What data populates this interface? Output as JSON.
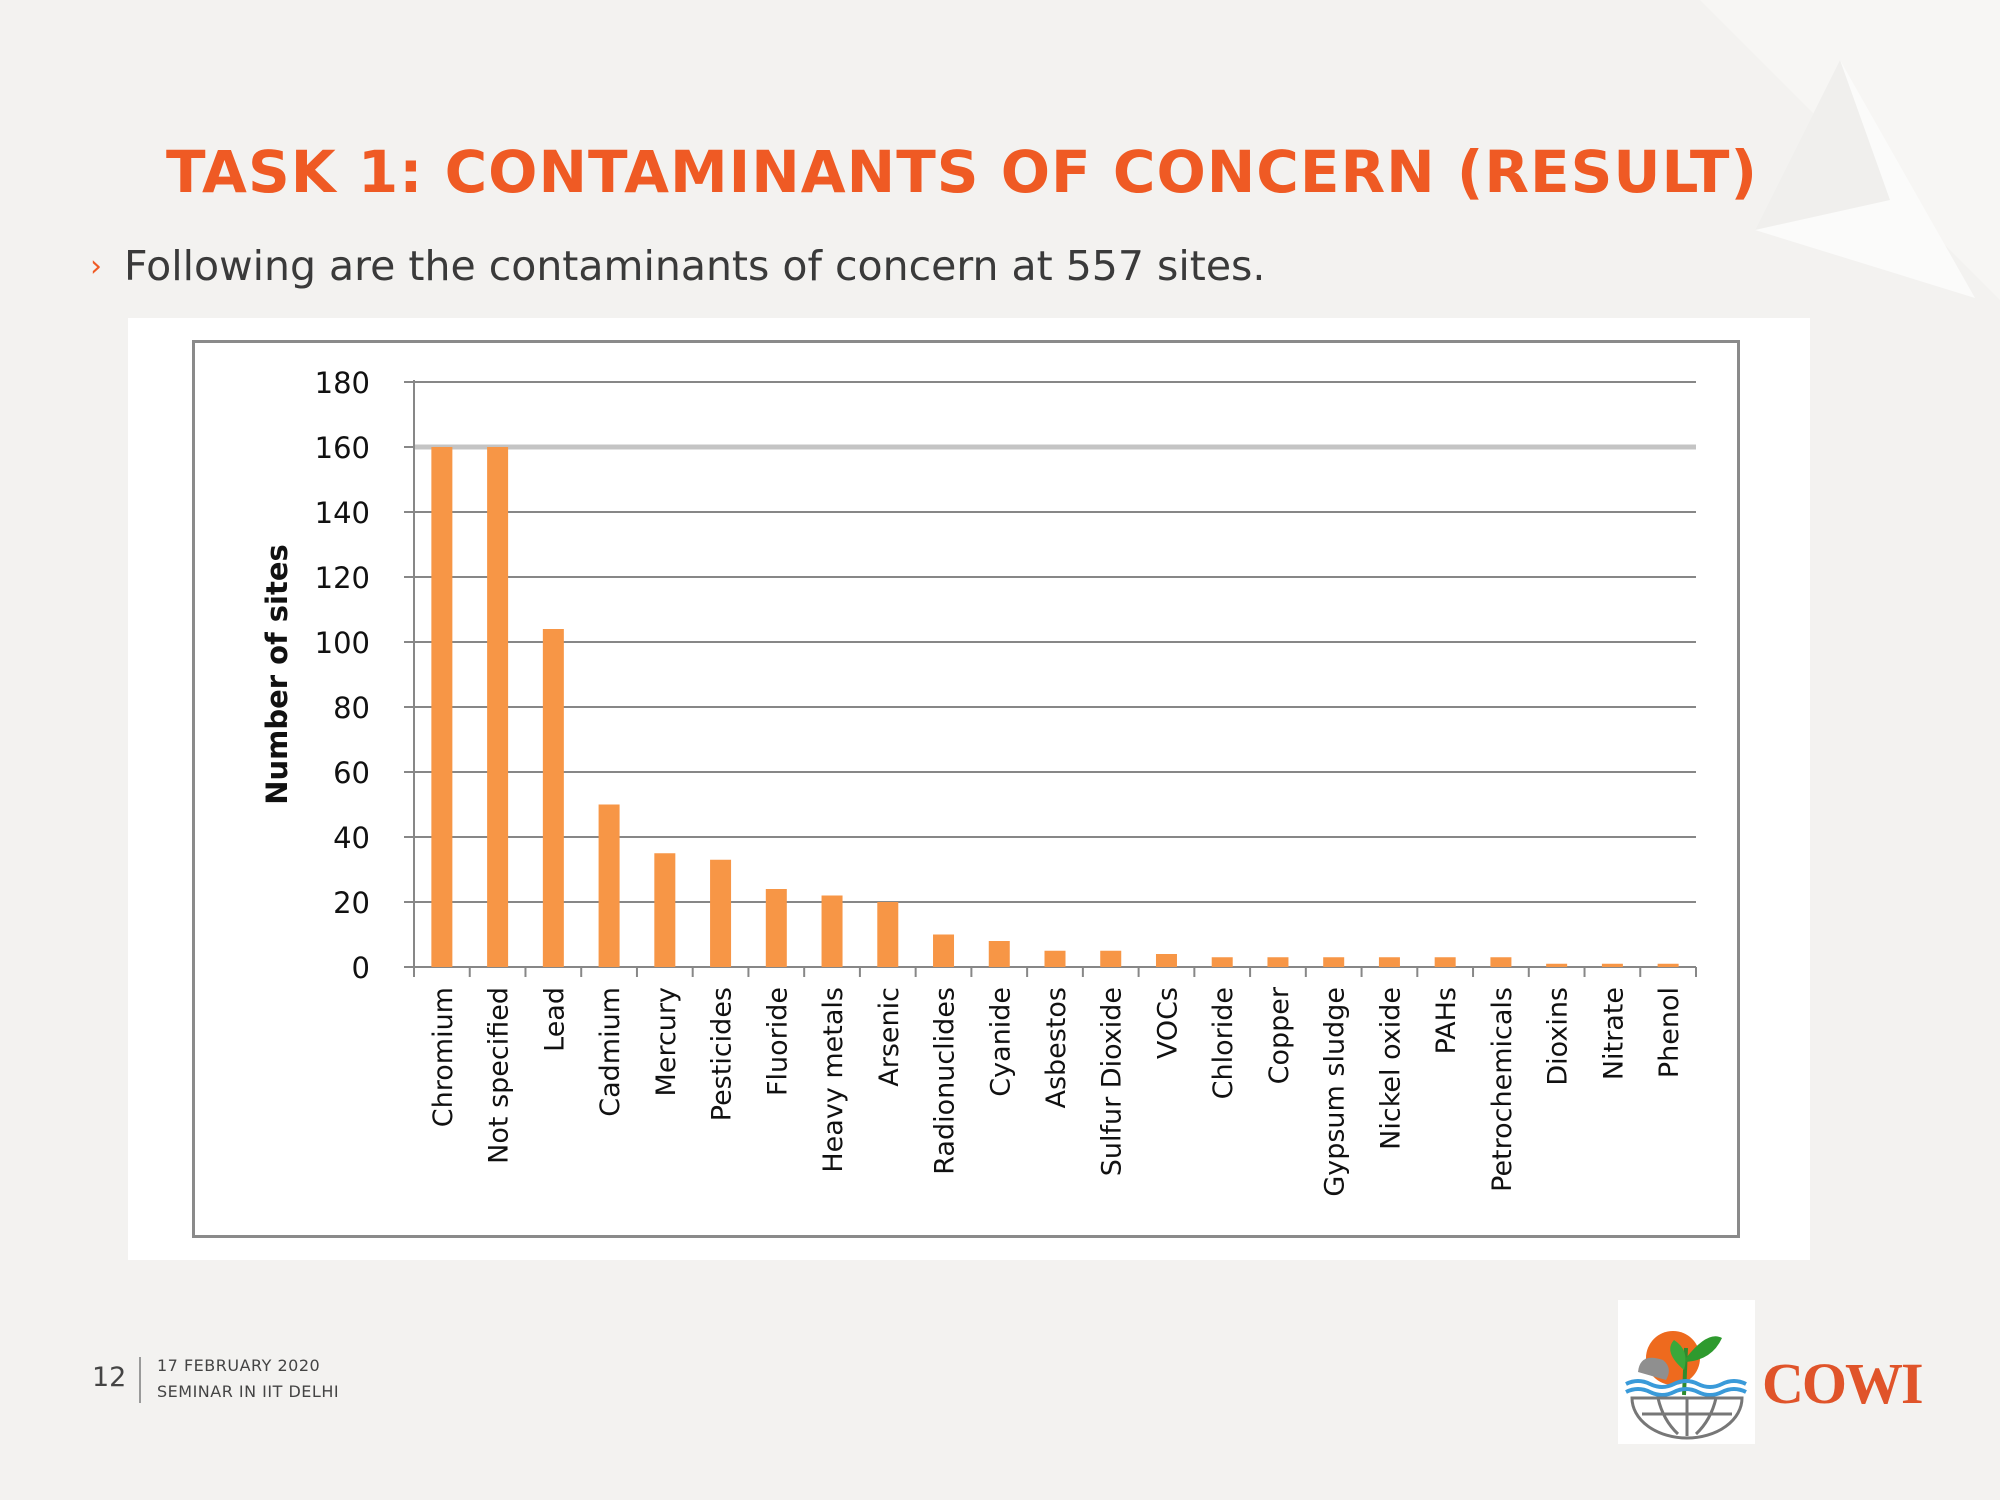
{
  "slide": {
    "title": "TASK 1: CONTAMINANTS OF CONCERN (RESULT)",
    "bullet_marker": "›",
    "bullet": "Following are the contaminants of concern at 557 sites.",
    "page_number": "12",
    "date": "17 FEBRUARY 2020",
    "event": "SEMINAR IN IIT DELHI",
    "logo_text": "COWI",
    "accent_color": "#ef5a24",
    "bar_color": "#f79646"
  },
  "chart_data": {
    "type": "bar",
    "categories": [
      "Chromium",
      "Not specified",
      "Lead",
      "Cadmium",
      "Mercury",
      "Pesticides",
      "Fluoride",
      "Heavy metals",
      "Arsenic",
      "Radionuclides",
      "Cyanide",
      "Asbestos",
      "Sulfur Dioxide",
      "VOCs",
      "Chloride",
      "Copper",
      "Gypsum sludge",
      "Nickel oxide",
      "PAHs",
      "Petrochemicals",
      "Dioxins",
      "Nitrate",
      "Phenol"
    ],
    "values": [
      160,
      160,
      104,
      50,
      35,
      33,
      24,
      22,
      20,
      10,
      8,
      5,
      5,
      4,
      3,
      3,
      3,
      3,
      3,
      3,
      1,
      1,
      1
    ],
    "title": "",
    "xlabel": "",
    "ylabel": "Number of sites",
    "ylim": [
      0,
      180
    ],
    "yticks": [
      0,
      20,
      40,
      60,
      80,
      100,
      120,
      140,
      160,
      180
    ],
    "grid": true,
    "legend": "none"
  }
}
